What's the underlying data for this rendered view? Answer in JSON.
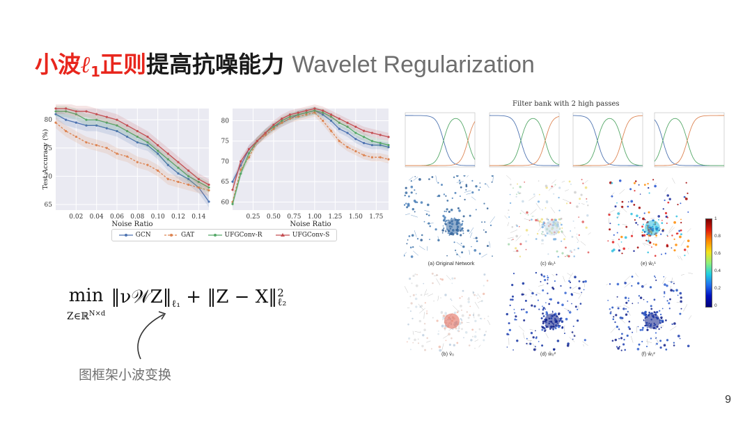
{
  "slide": {
    "title_red": "小波",
    "title_ell": "ℓ",
    "title_sub": "1",
    "title_red2": "正则",
    "title_black": "提高抗噪能力",
    "title_gray": "Wavelet Regularization",
    "caption_cn": "图框架小波变换",
    "page_number": "9"
  },
  "formula": {
    "min": "min",
    "subscript": "Z∈ℝ",
    "subscript_sup": "N×d",
    "norm1": "‖ν𝒲Z‖",
    "norm1_sub": "ℓ₁",
    "plus": " + ",
    "norm2": "‖Z − X‖",
    "norm2_sup": "2",
    "norm2_sub": "ℓ₂"
  },
  "colors": {
    "GCN": "#4c72b0",
    "GAT": "#dd8452",
    "UFGConv-R": "#55a868",
    "UFGConv-S": "#c44e52",
    "panel_bg": "#eaeaf2",
    "title_red": "#e8261d"
  },
  "legend": [
    {
      "name": "GCN",
      "marker": "circle"
    },
    {
      "name": "GAT",
      "marker": "circle"
    },
    {
      "name": "UFGConv-R",
      "marker": "circle"
    },
    {
      "name": "UFGConv-S",
      "marker": "triangle"
    }
  ],
  "chart_data": [
    {
      "type": "line",
      "xlabel": "Noise Ratio",
      "ylabel": "Test Accuracy (%)",
      "xlim": [
        0.0,
        0.15
      ],
      "ylim": [
        64,
        82
      ],
      "xticks": [
        "0.02",
        "0.04",
        "0.06",
        "0.08",
        "0.10",
        "0.12",
        "0.14"
      ],
      "yticks": [
        "65",
        "70",
        "75",
        "80"
      ],
      "x": [
        0.0,
        0.01,
        0.02,
        0.03,
        0.04,
        0.05,
        0.06,
        0.07,
        0.08,
        0.09,
        0.1,
        0.11,
        0.12,
        0.13,
        0.14,
        0.15
      ],
      "series": [
        {
          "name": "GCN",
          "values": [
            81,
            80,
            79.5,
            79,
            79,
            78.5,
            78,
            77,
            76,
            75.5,
            74,
            72,
            70.5,
            69.5,
            68,
            65.5
          ]
        },
        {
          "name": "GAT",
          "values": [
            79.5,
            78,
            77,
            76,
            75.5,
            75,
            74,
            73.5,
            72.5,
            72,
            71,
            69.5,
            69,
            68.5,
            68,
            67.5
          ]
        },
        {
          "name": "UFGConv-R",
          "values": [
            81.5,
            81.5,
            81,
            80,
            80,
            79.5,
            79,
            78,
            77,
            76,
            74.5,
            73,
            71.5,
            70,
            69,
            68
          ]
        },
        {
          "name": "UFGConv-S",
          "values": [
            82,
            82,
            81.5,
            81.5,
            81,
            80.5,
            80,
            79,
            78,
            77,
            75.5,
            74,
            72.5,
            71,
            69.5,
            68.5
          ]
        }
      ]
    },
    {
      "type": "line",
      "xlabel": "Noise Ratio",
      "ylabel": "",
      "xlim": [
        0.0,
        1.9
      ],
      "ylim": [
        58,
        83
      ],
      "xticks": [
        "0.25",
        "0.50",
        "0.75",
        "1.00",
        "1.25",
        "1.50",
        "1.75"
      ],
      "yticks": [
        "60",
        "65",
        "70",
        "75",
        "80"
      ],
      "x": [
        0.0,
        0.1,
        0.2,
        0.3,
        0.4,
        0.5,
        0.6,
        0.7,
        0.8,
        0.9,
        1.0,
        1.1,
        1.2,
        1.3,
        1.4,
        1.5,
        1.6,
        1.7,
        1.8,
        1.9
      ],
      "series": [
        {
          "name": "GCN",
          "values": [
            65,
            69,
            73,
            75,
            77,
            78.5,
            79.5,
            80.5,
            81.5,
            82,
            82.5,
            81.5,
            80,
            78,
            77,
            75.5,
            74.5,
            74,
            74,
            73.5
          ]
        },
        {
          "name": "GAT",
          "values": [
            60,
            68,
            71,
            75,
            76.5,
            78,
            79.5,
            80.5,
            81,
            81.5,
            82,
            80,
            77.5,
            75,
            73.5,
            72.5,
            71.5,
            71,
            71,
            70.5
          ]
        },
        {
          "name": "UFGConv-R",
          "values": [
            59.5,
            67,
            72,
            75,
            77,
            78.5,
            80,
            81,
            81.5,
            82,
            82.5,
            82,
            81,
            79.5,
            78.5,
            77,
            76,
            75,
            74.5,
            74
          ]
        },
        {
          "name": "UFGConv-S",
          "values": [
            63,
            70,
            73,
            75,
            77,
            79,
            80.5,
            81.5,
            82,
            82.5,
            83,
            82.5,
            81.5,
            80.5,
            79.5,
            78.5,
            77.5,
            77,
            76.5,
            76
          ]
        }
      ]
    }
  ],
  "filter_bank": {
    "title": "Filter bank with 2 high passes"
  },
  "maps": [
    {
      "label": "(a) Original Network"
    },
    {
      "label": "(c) ŵ₀¹"
    },
    {
      "label": "(e) ŵ₁¹"
    },
    {
      "label": "(b) v̂₀"
    },
    {
      "label": "(d) ŵ₀²"
    },
    {
      "label": "(f) ŵ₁²"
    }
  ],
  "colorbar": {
    "ticks": [
      "1",
      "0.8",
      "0.6",
      "0.4",
      "0.2",
      "0"
    ]
  }
}
